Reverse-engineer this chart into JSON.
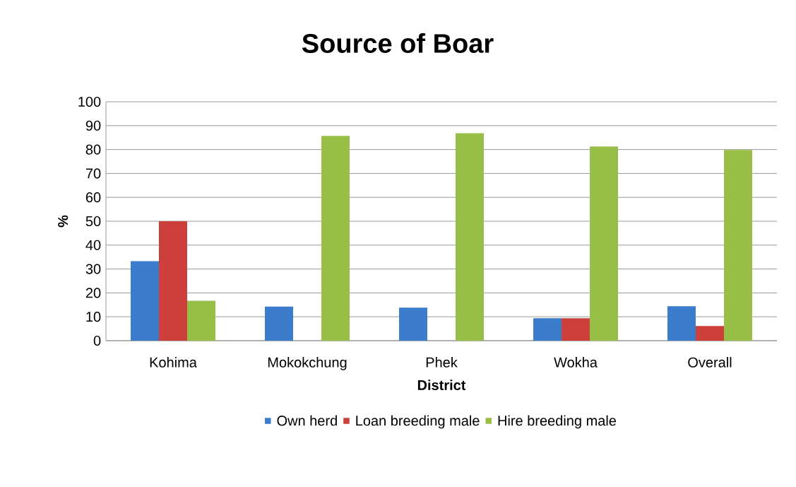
{
  "chart_data": {
    "type": "bar",
    "title": "Source of Boar",
    "xlabel": "District",
    "ylabel": "%",
    "categories": [
      "Kohima",
      "Mokokchung",
      "Phek",
      "Wokha",
      "Overall"
    ],
    "series": [
      {
        "name": "Own herd",
        "color": "#3b7dcc",
        "values": [
          33.3,
          14.3,
          13.8,
          9.4,
          14.4
        ]
      },
      {
        "name": "Loan breeding male",
        "color": "#cc3f3a",
        "values": [
          50,
          0,
          0,
          9.4,
          6.1
        ]
      },
      {
        "name": "Hire breeding male",
        "color": "#98bf45",
        "values": [
          16.7,
          85.7,
          86.8,
          81.3,
          79.8
        ]
      }
    ],
    "ylim": [
      0,
      100
    ],
    "yticks": [
      0,
      10,
      20,
      30,
      40,
      50,
      60,
      70,
      80,
      90,
      100
    ],
    "grid": "y",
    "legend": "bottom"
  }
}
